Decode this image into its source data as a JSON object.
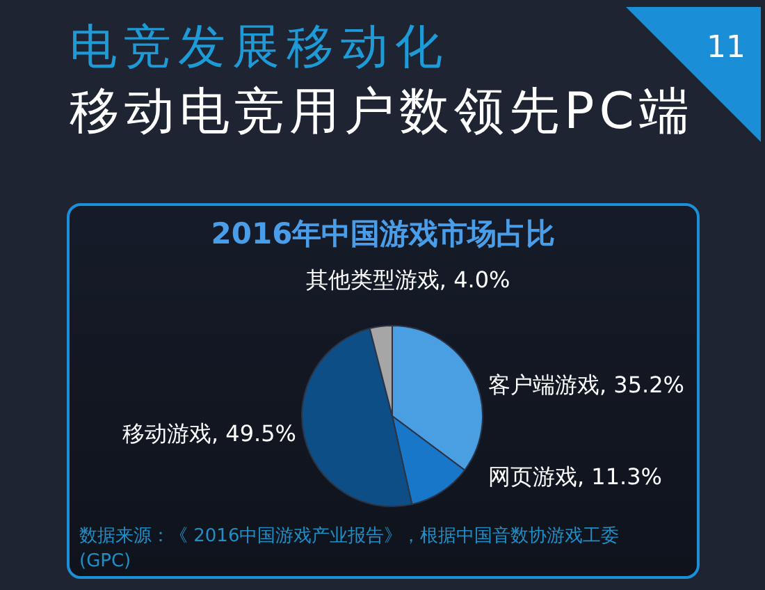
{
  "chart_data": {
    "type": "pie",
    "title": "电竞发展移动化",
    "subtitle": "移动电竞用户数领先PC端",
    "categories": [
      "客户端游戏",
      "网页游戏",
      "移动游戏",
      "其他类型游戏"
    ],
    "values": [
      35.2,
      11.3,
      49.5,
      4.0
    ],
    "colors": [
      "#4a9ee2",
      "#1877c8",
      "#0d4e87",
      "#a6a6a6"
    ],
    "value_labels": [
      "35.2%",
      "11.3%",
      "49.5%",
      "4.0%"
    ],
    "annotations": [
      "2016年中国游戏市场占比",
      "数据来源：《 2016中国游戏产业报告》，根据中国音数协游戏工委(GPC)",
      "11"
    ]
  }
}
